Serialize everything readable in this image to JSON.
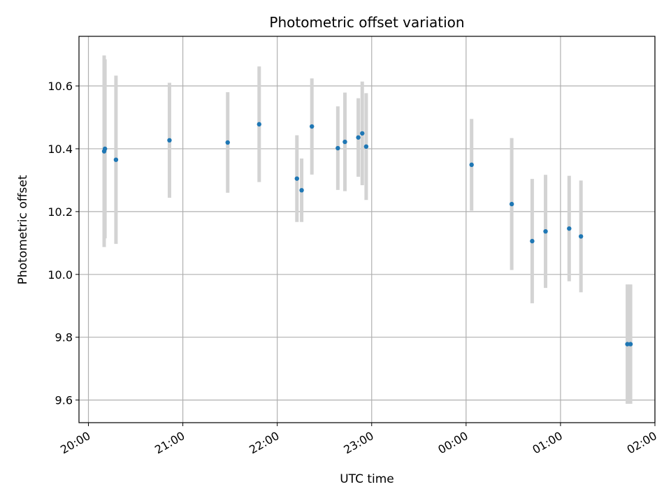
{
  "chart_data": {
    "type": "scatter",
    "title": "Photometric offset variation",
    "xlabel": "UTC time",
    "ylabel": "Photometric offset",
    "x_tick_labels": [
      "20:00",
      "21:00",
      "22:00",
      "23:00",
      "00:00",
      "01:00",
      "02:00"
    ],
    "y_tick_labels": [
      "9.6",
      "9.8",
      "10.0",
      "10.2",
      "10.4",
      "10.6"
    ],
    "x_unit": "minutes after 20:00 UTC",
    "xlim": [
      -6,
      360
    ],
    "ylim": [
      9.528,
      10.758
    ],
    "y_ticks": [
      9.6,
      9.8,
      10.0,
      10.2,
      10.4,
      10.6
    ],
    "grid": true,
    "point_color": "#1f77b4",
    "errorbar_color": "#d3d3d3",
    "points": [
      {
        "x": 10,
        "y": 10.392,
        "err": 0.305
      },
      {
        "x": 10.5,
        "y": 10.4,
        "err": 0.285
      },
      {
        "x": 17.5,
        "y": 10.365,
        "err": 0.268
      },
      {
        "x": 51.5,
        "y": 10.427,
        "err": 0.183
      },
      {
        "x": 88.5,
        "y": 10.42,
        "err": 0.16
      },
      {
        "x": 108.5,
        "y": 10.478,
        "err": 0.184
      },
      {
        "x": 132.5,
        "y": 10.305,
        "err": 0.138
      },
      {
        "x": 135.5,
        "y": 10.268,
        "err": 0.101
      },
      {
        "x": 142,
        "y": 10.471,
        "err": 0.153
      },
      {
        "x": 158.5,
        "y": 10.402,
        "err": 0.133
      },
      {
        "x": 163,
        "y": 10.422,
        "err": 0.157
      },
      {
        "x": 171.5,
        "y": 10.436,
        "err": 0.125
      },
      {
        "x": 174,
        "y": 10.449,
        "err": 0.165
      },
      {
        "x": 176.5,
        "y": 10.407,
        "err": 0.17
      },
      {
        "x": 243.5,
        "y": 10.349,
        "err": 0.146
      },
      {
        "x": 269,
        "y": 10.224,
        "err": 0.21
      },
      {
        "x": 282,
        "y": 10.106,
        "err": 0.198
      },
      {
        "x": 290.5,
        "y": 10.137,
        "err": 0.18
      },
      {
        "x": 305.5,
        "y": 10.146,
        "err": 0.168
      },
      {
        "x": 313,
        "y": 10.121,
        "err": 0.178
      },
      {
        "x": 342.5,
        "y": 9.778,
        "err": 0.19
      },
      {
        "x": 344.5,
        "y": 9.778,
        "err": 0.19
      }
    ]
  }
}
